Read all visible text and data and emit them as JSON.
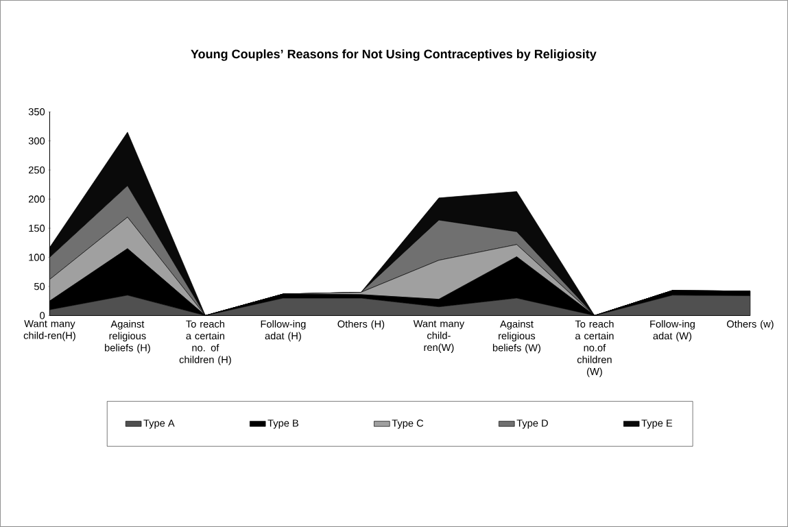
{
  "chart_data": {
    "type": "area",
    "title": "Young Couples’ Reasons for Not Using Contraceptives by Religiosity",
    "categories": [
      "Want many child-ren(H)",
      "Against religious beliefs (H)",
      "To reach a certain no. of children (H)",
      "Follow-ing adat (H)",
      "Others (H)",
      "Want many child-ren(W)",
      "Against religious beliefs (W)",
      "To reach a certain no.of children (W)",
      "Follow-ing adat (W)",
      "Others (w)"
    ],
    "series": [
      {
        "name": "Type A",
        "color": "#505050",
        "values": [
          10,
          35,
          0,
          30,
          30,
          15,
          30,
          0,
          35,
          34
        ]
      },
      {
        "name": "Type B",
        "color": "#000000",
        "values": [
          15,
          80,
          0,
          7,
          6,
          13,
          71,
          0,
          8,
          8
        ]
      },
      {
        "name": "Type C",
        "color": "#a0a0a0",
        "values": [
          37,
          54,
          0,
          0,
          4,
          67,
          21,
          0,
          0,
          0
        ]
      },
      {
        "name": "Type D",
        "color": "#707070",
        "values": [
          38,
          54,
          0,
          0,
          0,
          69,
          22,
          0,
          0,
          0
        ]
      },
      {
        "name": "Type E",
        "color": "#0a0a0a",
        "values": [
          17,
          92,
          0,
          0,
          0,
          38,
          69,
          0,
          0,
          0
        ]
      }
    ],
    "stacked": true,
    "ylim": [
      0,
      350
    ],
    "yticks": [
      0,
      50,
      100,
      150,
      200,
      250,
      300,
      350
    ],
    "legend": "bottom"
  }
}
